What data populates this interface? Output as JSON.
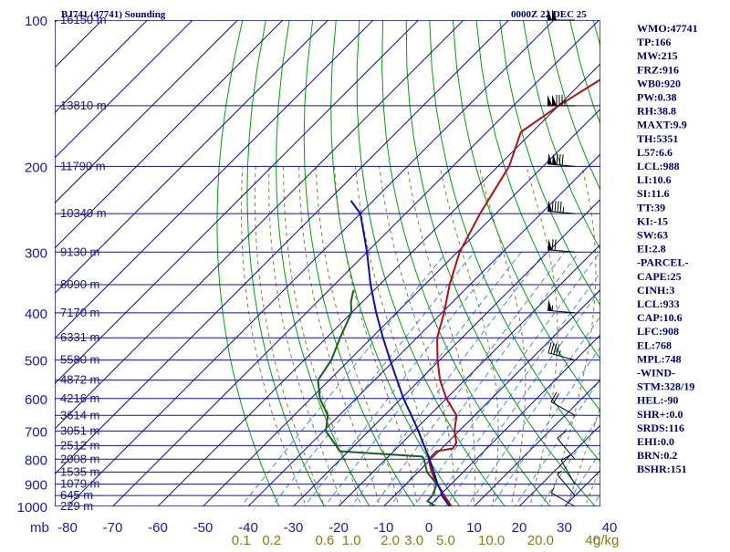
{
  "header": {
    "station": "BJ741 (47741) Sounding",
    "time": "0000Z 22 DEC 25"
  },
  "chart_data": {
    "type": "line",
    "title": "BJ741 (47741) Sounding",
    "chart_kind": "Skew-T log-P thermodynamic diagram",
    "x_axis": {
      "quantity": "temperature",
      "prefix_label": "mb",
      "ticks": [
        -80,
        -70,
        -60,
        -50,
        -40,
        -30,
        -20,
        -10,
        0,
        10,
        20,
        30,
        40
      ],
      "tick_labels": [
        "-80",
        "-70",
        "-60",
        "-50",
        "-40",
        "-30",
        "-20",
        "-10",
        "0",
        "10",
        "20",
        "30",
        "40"
      ],
      "range": [
        -80,
        40
      ]
    },
    "y_axis": {
      "quantity": "pressure (mb)",
      "scale": "log",
      "ticks": [
        100,
        200,
        300,
        400,
        500,
        600,
        700,
        800,
        900,
        1000
      ],
      "tick_labels": [
        "100",
        "200",
        "300",
        "400",
        "500",
        "600",
        "700",
        "800",
        "900",
        "1000"
      ],
      "range": [
        100,
        1000
      ]
    },
    "isobars": [
      100,
      150,
      200,
      250,
      300,
      350,
      400,
      450,
      500,
      550,
      600,
      650,
      700,
      750,
      800,
      850,
      900,
      950,
      1000
    ],
    "height_labels": [
      {
        "p": 100,
        "label": "16150 m"
      },
      {
        "p": 150,
        "label": "13810 m"
      },
      {
        "p": 200,
        "label": "11790 m"
      },
      {
        "p": 250,
        "label": "10340 m"
      },
      {
        "p": 300,
        "label": "9130 m"
      },
      {
        "p": 350,
        "label": "8090 m"
      },
      {
        "p": 400,
        "label": "7170 m"
      },
      {
        "p": 450,
        "label": "6331 m"
      },
      {
        "p": 500,
        "label": "5580 m"
      },
      {
        "p": 550,
        "label": "4872 m"
      },
      {
        "p": 600,
        "label": "4216 m"
      },
      {
        "p": 650,
        "label": "3614 m"
      },
      {
        "p": 700,
        "label": "3051 m"
      },
      {
        "p": 750,
        "label": "2512 m"
      },
      {
        "p": 800,
        "label": "2008 m"
      },
      {
        "p": 850,
        "label": "1535 m"
      },
      {
        "p": 900,
        "label": "1079 m"
      },
      {
        "p": 950,
        "label": "645 m"
      },
      {
        "p": 1000,
        "label": "229 m"
      }
    ],
    "mixing_ratio": {
      "unit": "g/kg",
      "labels": [
        "0.1",
        "0.2",
        "0.6",
        "1.0",
        "2.0",
        "3.0",
        "5.0",
        "10.0",
        "20.0",
        "40"
      ],
      "unit_label": "g/kg"
    },
    "series": [
      {
        "name": "Temperature",
        "color": "#b01010",
        "points": [
          [
            1005,
            6.9
          ],
          [
            1000,
            5.0
          ],
          [
            950,
            1.0
          ],
          [
            900,
            -3.0
          ],
          [
            850,
            -7.0
          ],
          [
            800,
            -10.5
          ],
          [
            770,
            -10.5
          ],
          [
            760,
            -7.5
          ],
          [
            740,
            -8.0
          ],
          [
            700,
            -11.0
          ],
          [
            650,
            -14.0
          ],
          [
            600,
            -20.0
          ],
          [
            550,
            -25.5
          ],
          [
            500,
            -30.5
          ],
          [
            450,
            -35.5
          ],
          [
            400,
            -39.5
          ],
          [
            350,
            -44.5
          ],
          [
            300,
            -49.5
          ],
          [
            250,
            -53.5
          ],
          [
            200,
            -57.5
          ],
          [
            170,
            -62.5
          ],
          [
            150,
            -60.0
          ],
          [
            130,
            -56.0
          ],
          [
            100,
            -53.0
          ]
        ]
      },
      {
        "name": "Dewpoint",
        "color": "#1c5c1c",
        "points": [
          [
            1005,
            2.9
          ],
          [
            1000,
            1.5
          ],
          [
            975,
            -1.5
          ],
          [
            950,
            -1.6
          ],
          [
            900,
            -3.2
          ],
          [
            850,
            -8.0
          ],
          [
            800,
            -11.5
          ],
          [
            790,
            -12.5
          ],
          [
            770,
            -32.0
          ],
          [
            750,
            -34.0
          ],
          [
            700,
            -39.5
          ],
          [
            650,
            -42.5
          ],
          [
            600,
            -48.0
          ],
          [
            550,
            -52.5
          ],
          [
            500,
            -54.0
          ],
          [
            450,
            -57.0
          ],
          [
            400,
            -60.0
          ],
          [
            380,
            -62.5
          ],
          [
            360,
            -64.5
          ]
        ]
      },
      {
        "name": "Parcel",
        "color": "#1010a0",
        "points": [
          [
            1005,
            5.0
          ],
          [
            950,
            0.5
          ],
          [
            933,
            -0.5
          ],
          [
            900,
            -3.0
          ],
          [
            850,
            -6.5
          ],
          [
            800,
            -10.3
          ],
          [
            750,
            -14.5
          ],
          [
            700,
            -19.0
          ],
          [
            650,
            -24.0
          ],
          [
            600,
            -29.5
          ],
          [
            550,
            -35.0
          ],
          [
            500,
            -41.0
          ],
          [
            450,
            -47.5
          ],
          [
            400,
            -54.5
          ],
          [
            350,
            -62.0
          ],
          [
            300,
            -70.0
          ],
          [
            250,
            -80.0
          ],
          [
            235,
            -85.0
          ]
        ]
      }
    ],
    "winds": [
      {
        "p": 100,
        "dir": 270,
        "spd": 100
      },
      {
        "p": 150,
        "dir": 270,
        "spd": 135
      },
      {
        "p": 200,
        "dir": 275,
        "spd": 130
      },
      {
        "p": 250,
        "dir": 275,
        "spd": 95
      },
      {
        "p": 300,
        "dir": 275,
        "spd": 70
      },
      {
        "p": 400,
        "dir": 275,
        "spd": 55
      },
      {
        "p": 500,
        "dir": 285,
        "spd": 45
      },
      {
        "p": 650,
        "dir": 300,
        "spd": 20
      },
      {
        "p": 800,
        "dir": 320,
        "spd": 10
      },
      {
        "p": 900,
        "dir": 330,
        "spd": 10
      },
      {
        "p": 950,
        "dir": 320,
        "spd": 5
      },
      {
        "p": 1000,
        "dir": 300,
        "spd": 5
      }
    ],
    "grid": true,
    "colors": {
      "frame": "#1010a0",
      "isotherm": "#1010a0",
      "dry_adiabat": "#00a000",
      "moist_adiabat": "#808030",
      "mixing_ratio_line": "#4090d0"
    }
  },
  "indices": [
    "WMO:47741",
    "TP:166",
    "MW:215",
    "FRZ:916",
    "WB0:920",
    "PW:0.38",
    "RH:38.8",
    "MAXT:9.9",
    "TH:5351",
    "L57:6.6",
    "LCL:988",
    "LI:10.6",
    "SI:11.6",
    "TT:39",
    "KI:-15",
    "SW:63",
    "EI:2.8",
    "-PARCEL-",
    "CAPE:25",
    "CINH:3",
    "LCL:933",
    "CAP:10.6",
    "LFC:908",
    "EL:768",
    "MPL:748",
    "-WIND-",
    "STM:328/19",
    "HEL:-90",
    "SHR+:0.0",
    "SRDS:116",
    "EHI:0.0",
    "BRN:0.2",
    "BSHR:151"
  ]
}
